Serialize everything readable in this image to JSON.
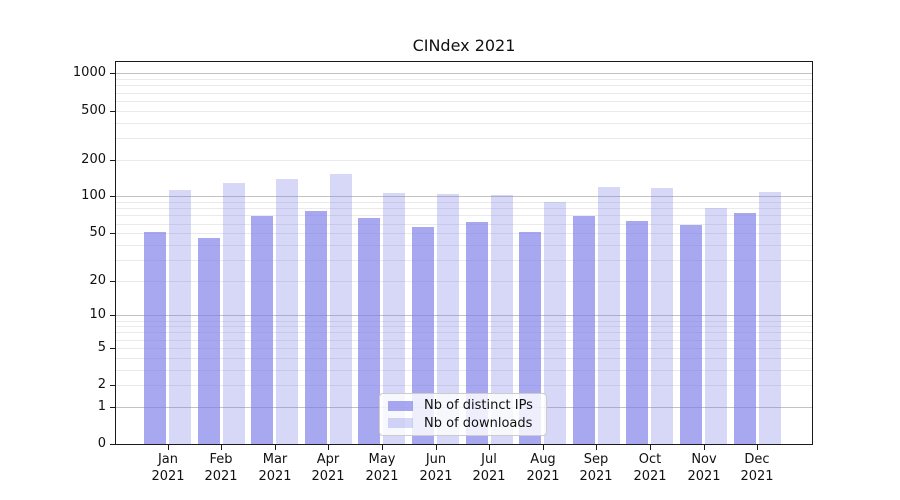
{
  "chart_data": {
    "type": "bar",
    "title": "CINdex 2021",
    "categories": [
      "Jan 2021",
      "Feb 2021",
      "Mar 2021",
      "Apr 2021",
      "May 2021",
      "Jun 2021",
      "Jul 2021",
      "Aug 2021",
      "Sep 2021",
      "Oct 2021",
      "Nov 2021",
      "Dec 2021"
    ],
    "series": [
      {
        "name": "Nb of distinct IPs",
        "values": [
          50,
          45,
          68,
          74,
          65,
          55,
          61,
          50,
          68,
          62,
          57,
          72
        ]
      },
      {
        "name": "Nb of downloads",
        "values": [
          110,
          127,
          136,
          150,
          105,
          103,
          101,
          89,
          118,
          115,
          79,
          107
        ]
      }
    ],
    "ytick_labels": [
      "0",
      "1",
      "2",
      "5",
      "10",
      "20",
      "50",
      "100",
      "200",
      "500",
      "1000"
    ],
    "yscale": "symlog (y proportional to log1p(value))",
    "ylim": [
      0,
      1200
    ],
    "grid": "horizontal; light minor lines at 2-9 per decade, darker lines at powers of 10",
    "legend_position": "lower center inside plot"
  },
  "colors": {
    "bar_base": "#7a7ae8",
    "bar_ips_alpha": 0.65,
    "bar_downloads_alpha": 0.3,
    "bar_ips_rendered": "#a8a8f0",
    "bar_downloads_rendered": "#d8d8f8",
    "grid_major": "#c2c2c2",
    "grid_minor": "#eaeaea",
    "spine": "#1a1a1a",
    "legend_border": "#cccccc",
    "text": "#111111",
    "background": "#ffffff"
  }
}
